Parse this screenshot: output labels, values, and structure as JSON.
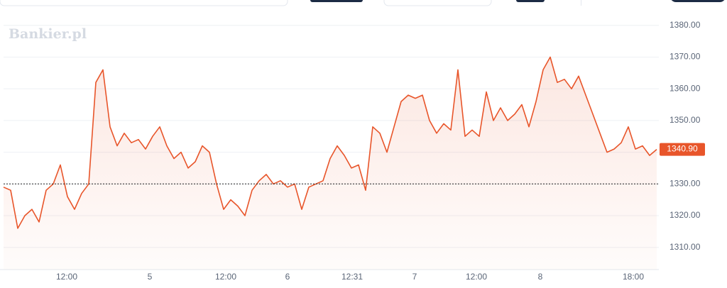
{
  "watermark": "Bankier.pl",
  "chart_data": {
    "type": "line",
    "x": [
      0,
      1,
      2,
      3,
      4,
      5,
      6,
      7,
      8,
      9,
      10,
      11,
      12,
      13,
      14,
      15,
      16,
      17,
      18,
      19,
      20,
      21,
      22,
      23,
      24,
      25,
      26,
      27,
      28,
      29,
      30,
      31,
      32,
      33,
      34,
      35,
      36,
      37,
      38,
      39,
      40,
      41,
      42,
      43,
      44,
      45,
      46,
      47,
      48,
      49,
      50,
      51,
      52,
      53,
      54,
      55,
      56,
      57,
      58,
      59,
      60,
      61,
      62,
      63,
      64,
      65,
      66,
      67,
      68,
      69,
      70,
      71,
      72,
      73,
      74,
      75,
      76,
      77,
      78,
      79,
      80,
      81,
      82,
      83,
      84,
      85,
      86,
      87,
      88,
      89,
      90,
      91,
      92
    ],
    "series": [
      {
        "color": "#e8552a",
        "values": [
          1329,
          1328,
          1316,
          1320,
          1322,
          1318,
          1328,
          1330,
          1336,
          1326,
          1322,
          1327,
          1330,
          1362,
          1366,
          1348,
          1342,
          1346,
          1343,
          1344,
          1341,
          1345,
          1348,
          1342,
          1338,
          1340,
          1335,
          1337,
          1342,
          1340,
          1330,
          1322,
          1325,
          1323,
          1320,
          1328,
          1331,
          1333,
          1330,
          1331,
          1329,
          1330,
          1322,
          1329,
          1330,
          1331,
          1338,
          1342,
          1339,
          1335,
          1336,
          1328,
          1348,
          1346,
          1340,
          1348,
          1356,
          1358,
          1357,
          1358,
          1350,
          1346,
          1349,
          1347,
          1366,
          1345,
          1347,
          1345,
          1359,
          1350,
          1354,
          1350,
          1352,
          1355,
          1348,
          1356,
          1366,
          1370,
          1362,
          1363,
          1360,
          1364,
          1358,
          1352,
          1346,
          1340,
          1341,
          1343,
          1348,
          1341,
          1342,
          1339,
          1340.9
        ]
      }
    ],
    "xlim": [
      0,
      92.3
    ],
    "xticks": [
      {
        "value": 8.9,
        "label": "12:00"
      },
      {
        "value": 20.6,
        "label": "5"
      },
      {
        "value": 31.3,
        "label": "12:00"
      },
      {
        "value": 40,
        "label": "6"
      },
      {
        "value": 49.1,
        "label": "12:31"
      },
      {
        "value": 57.9,
        "label": "7"
      },
      {
        "value": 66.6,
        "label": "12:00"
      },
      {
        "value": 75.6,
        "label": "8"
      },
      {
        "value": 88.7,
        "label": "18:00"
      }
    ],
    "ylim": [
      1303,
      1388
    ],
    "yticks": [
      {
        "value": 1310,
        "label": "1310.00"
      },
      {
        "value": 1320,
        "label": "1320.00"
      },
      {
        "value": 1330,
        "label": "1330.00"
      },
      {
        "value": 1340,
        "label": "1340.00"
      },
      {
        "value": 1350,
        "label": "1350.00"
      },
      {
        "value": 1360,
        "label": "1360.00"
      },
      {
        "value": 1370,
        "label": "1370.00"
      },
      {
        "value": 1380,
        "label": "1380.00"
      }
    ],
    "reference_line": 1330,
    "current_price": {
      "value": 1340.9,
      "label": "1340.90"
    },
    "grid": true
  }
}
